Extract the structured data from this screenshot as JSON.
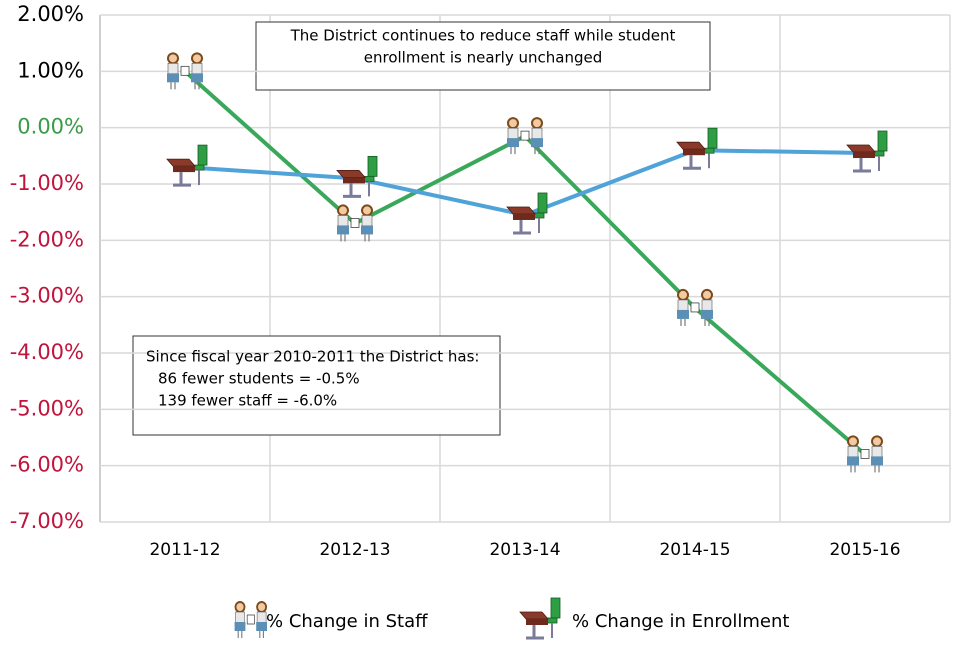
{
  "chart_data": {
    "type": "line",
    "categories": [
      "2011-12",
      "2012-13",
      "2013-14",
      "2014-15",
      "2015-16"
    ],
    "series": [
      {
        "name": "% Change in Staff",
        "color": "#3aa85a",
        "marker": "staff",
        "values": [
          1.0,
          -1.7,
          -0.15,
          -3.2,
          -5.8
        ]
      },
      {
        "name": "% Change in Enrollment",
        "color": "#4fa3d9",
        "marker": "desk",
        "values": [
          -0.7,
          -0.9,
          -1.55,
          -0.4,
          -0.45
        ]
      }
    ],
    "ylim": [
      -7,
      2
    ],
    "yticks": [
      {
        "value": 2,
        "label": "2.00%"
      },
      {
        "value": 1,
        "label": "1.00%"
      },
      {
        "value": 0,
        "label": "0.00%"
      },
      {
        "value": -1,
        "label": "-1.00%"
      },
      {
        "value": -2,
        "label": "-2.00%"
      },
      {
        "value": -3,
        "label": "-3.00%"
      },
      {
        "value": -4,
        "label": "-4.00%"
      },
      {
        "value": -5,
        "label": "-5.00%"
      },
      {
        "value": -6,
        "label": "-6.00%"
      },
      {
        "value": -7,
        "label": "-7.00%"
      }
    ],
    "tick_label_colors": {
      "positive": "#000000",
      "zero": "#3a9a47",
      "negative": "#c0143c"
    },
    "grid": true,
    "legend": "bottom",
    "annotations": [
      {
        "lines": [
          "The District continues to reduce staff while student",
          "enrollment is nearly unchanged"
        ]
      },
      {
        "lines": [
          "Since fiscal year 2010-2011 the District has:",
          "86 fewer students = -0.5%",
          "139 fewer staff = -6.0%"
        ]
      }
    ]
  }
}
